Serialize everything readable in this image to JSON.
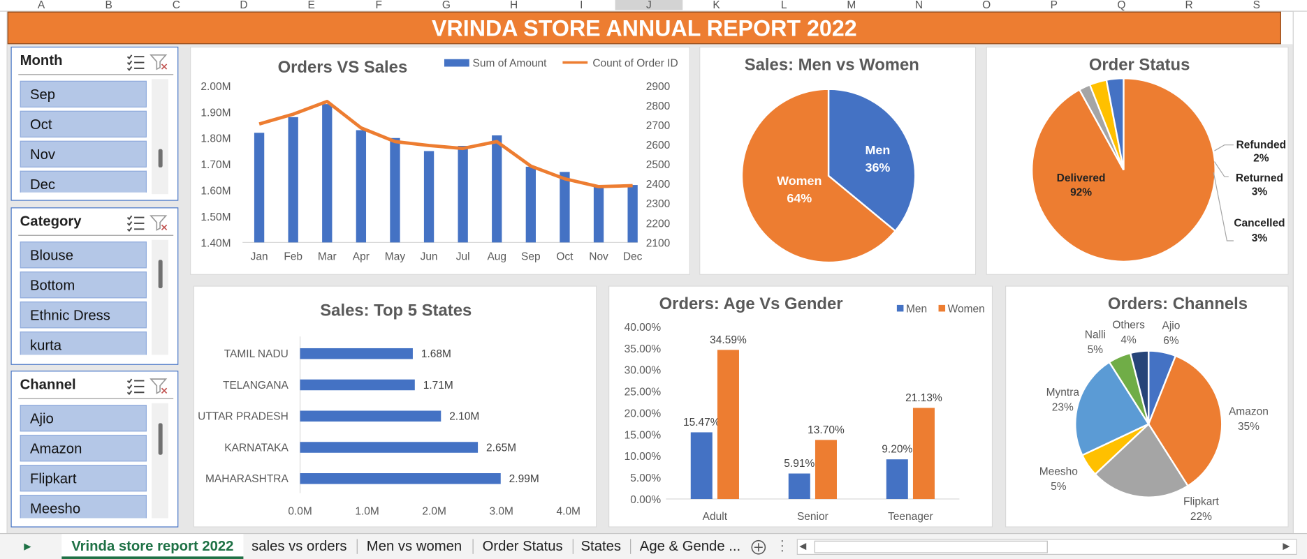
{
  "column_headers": [
    "A",
    "B",
    "C",
    "D",
    "E",
    "F",
    "G",
    "H",
    "I",
    "J",
    "K",
    "L",
    "M",
    "N",
    "O",
    "P",
    "Q",
    "R",
    "S"
  ],
  "banner_title": "VRINDA STORE ANNUAL REPORT 2022",
  "slicers": {
    "month": {
      "title": "Month",
      "items": [
        "Sep",
        "Oct",
        "Nov",
        "Dec"
      ]
    },
    "category": {
      "title": "Category",
      "items": [
        "Blouse",
        "Bottom",
        "Ethnic Dress",
        "kurta"
      ]
    },
    "channel": {
      "title": "Channel",
      "items": [
        "Ajio",
        "Amazon",
        "Flipkart",
        "Meesho"
      ]
    }
  },
  "tabs": {
    "active": "Vrinda store report 2022",
    "others": [
      "sales vs orders",
      "Men vs women",
      "Order Status",
      "States",
      "Age & Gende ..."
    ]
  },
  "colors": {
    "blue": "#4472c4",
    "orange": "#ed7d31",
    "gray": "#a5a5a5",
    "yellow": "#ffc000",
    "lightblue": "#5b9bd5",
    "green": "#70ad47",
    "navy": "#264478",
    "excel_green": "#1e7145"
  },
  "chart_data": [
    {
      "type": "bar+line",
      "title": "Orders VS Sales",
      "categories": [
        "Jan",
        "Feb",
        "Mar",
        "Apr",
        "May",
        "Jun",
        "Jul",
        "Aug",
        "Sep",
        "Oct",
        "Nov",
        "Dec"
      ],
      "series": [
        {
          "name": "Sum of Amount",
          "axis": "left",
          "values": [
            1.82,
            1.88,
            1.93,
            1.83,
            1.8,
            1.75,
            1.77,
            1.81,
            1.69,
            1.67,
            1.62,
            1.62
          ]
        },
        {
          "name": "Count of Order ID",
          "axis": "right",
          "values": [
            2705,
            2755,
            2820,
            2685,
            2615,
            2595,
            2580,
            2615,
            2490,
            2425,
            2385,
            2390
          ]
        }
      ],
      "y_left_ticks": [
        "1.40M",
        "1.50M",
        "1.60M",
        "1.70M",
        "1.80M",
        "1.90M",
        "2.00M"
      ],
      "ylim_left": [
        1.4,
        2.0
      ],
      "y_right_ticks": [
        "2100",
        "2200",
        "2300",
        "2400",
        "2500",
        "2600",
        "2700",
        "2800",
        "2900"
      ],
      "ylim_right": [
        2100,
        2900
      ]
    },
    {
      "type": "pie",
      "title": "Sales: Men vs Women",
      "labels": [
        "Men",
        "Women"
      ],
      "values": [
        36,
        64
      ],
      "value_labels": [
        "36%",
        "64%"
      ]
    },
    {
      "type": "pie",
      "title": "Order Status",
      "labels": [
        "Delivered",
        "Refunded",
        "Returned",
        "Cancelled"
      ],
      "values": [
        92,
        2,
        3,
        3
      ],
      "value_labels": [
        "92%",
        "2%",
        "3%",
        "3%"
      ]
    },
    {
      "type": "bar",
      "orientation": "horizontal",
      "title": "Sales: Top 5 States",
      "categories": [
        "TAMIL NADU",
        "TELANGANA",
        "UTTAR PRADESH",
        "KARNATAKA",
        "MAHARASHTRA"
      ],
      "values": [
        1.68,
        1.71,
        2.1,
        2.65,
        2.99
      ],
      "value_labels": [
        "1.68M",
        "1.71M",
        "2.10M",
        "2.65M",
        "2.99M"
      ],
      "x_ticks": [
        "0.0M",
        "1.0M",
        "2.0M",
        "3.0M",
        "4.0M"
      ],
      "xlim": [
        0,
        4
      ]
    },
    {
      "type": "bar",
      "title": "Orders: Age Vs Gender",
      "categories": [
        "Adult",
        "Senior",
        "Teenager"
      ],
      "series": [
        {
          "name": "Men",
          "values": [
            15.47,
            5.91,
            9.2
          ],
          "value_labels": [
            "15.47%",
            "5.91%",
            "9.20%"
          ]
        },
        {
          "name": "Women",
          "values": [
            34.59,
            13.7,
            21.13
          ],
          "value_labels": [
            "34.59%",
            "13.70%",
            "21.13%"
          ]
        }
      ],
      "y_ticks": [
        "0.00%",
        "5.00%",
        "10.00%",
        "15.00%",
        "20.00%",
        "25.00%",
        "30.00%",
        "35.00%",
        "40.00%"
      ],
      "ylim": [
        0,
        40
      ]
    },
    {
      "type": "pie",
      "title": "Orders: Channels",
      "labels": [
        "Ajio",
        "Amazon",
        "Flipkart",
        "Meesho",
        "Myntra",
        "Nalli",
        "Others"
      ],
      "values": [
        6,
        35,
        22,
        5,
        23,
        5,
        4
      ],
      "value_labels": [
        "6%",
        "35%",
        "22%",
        "5%",
        "23%",
        "5%",
        "4%"
      ]
    }
  ]
}
